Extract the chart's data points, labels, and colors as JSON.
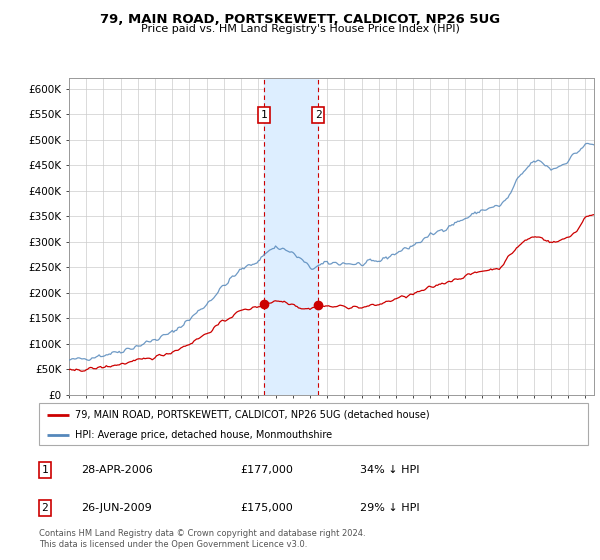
{
  "title": "79, MAIN ROAD, PORTSKEWETT, CALDICOT, NP26 5UG",
  "subtitle": "Price paid vs. HM Land Registry's House Price Index (HPI)",
  "ylabel_ticks": [
    "£0",
    "£50K",
    "£100K",
    "£150K",
    "£200K",
    "£250K",
    "£300K",
    "£350K",
    "£400K",
    "£450K",
    "£500K",
    "£550K",
    "£600K"
  ],
  "ytick_values": [
    0,
    50000,
    100000,
    150000,
    200000,
    250000,
    300000,
    350000,
    400000,
    450000,
    500000,
    550000,
    600000
  ],
  "ylim": [
    0,
    620000
  ],
  "xlim_start": 1995.0,
  "xlim_end": 2025.5,
  "legend_line1": "79, MAIN ROAD, PORTSKEWETT, CALDICOT, NP26 5UG (detached house)",
  "legend_line2": "HPI: Average price, detached house, Monmouthshire",
  "transaction1_date": "28-APR-2006",
  "transaction1_price": "£177,000",
  "transaction1_hpi": "34% ↓ HPI",
  "transaction2_date": "26-JUN-2009",
  "transaction2_price": "£175,000",
  "transaction2_hpi": "29% ↓ HPI",
  "footnote": "Contains HM Land Registry data © Crown copyright and database right 2024.\nThis data is licensed under the Open Government Licence v3.0.",
  "color_red": "#cc0000",
  "color_blue": "#5588bb",
  "color_shade": "#ddeeff",
  "transaction1_x": 2006.32,
  "transaction2_x": 2009.48,
  "marker1_y_red": 177000,
  "marker2_y_red": 175000
}
